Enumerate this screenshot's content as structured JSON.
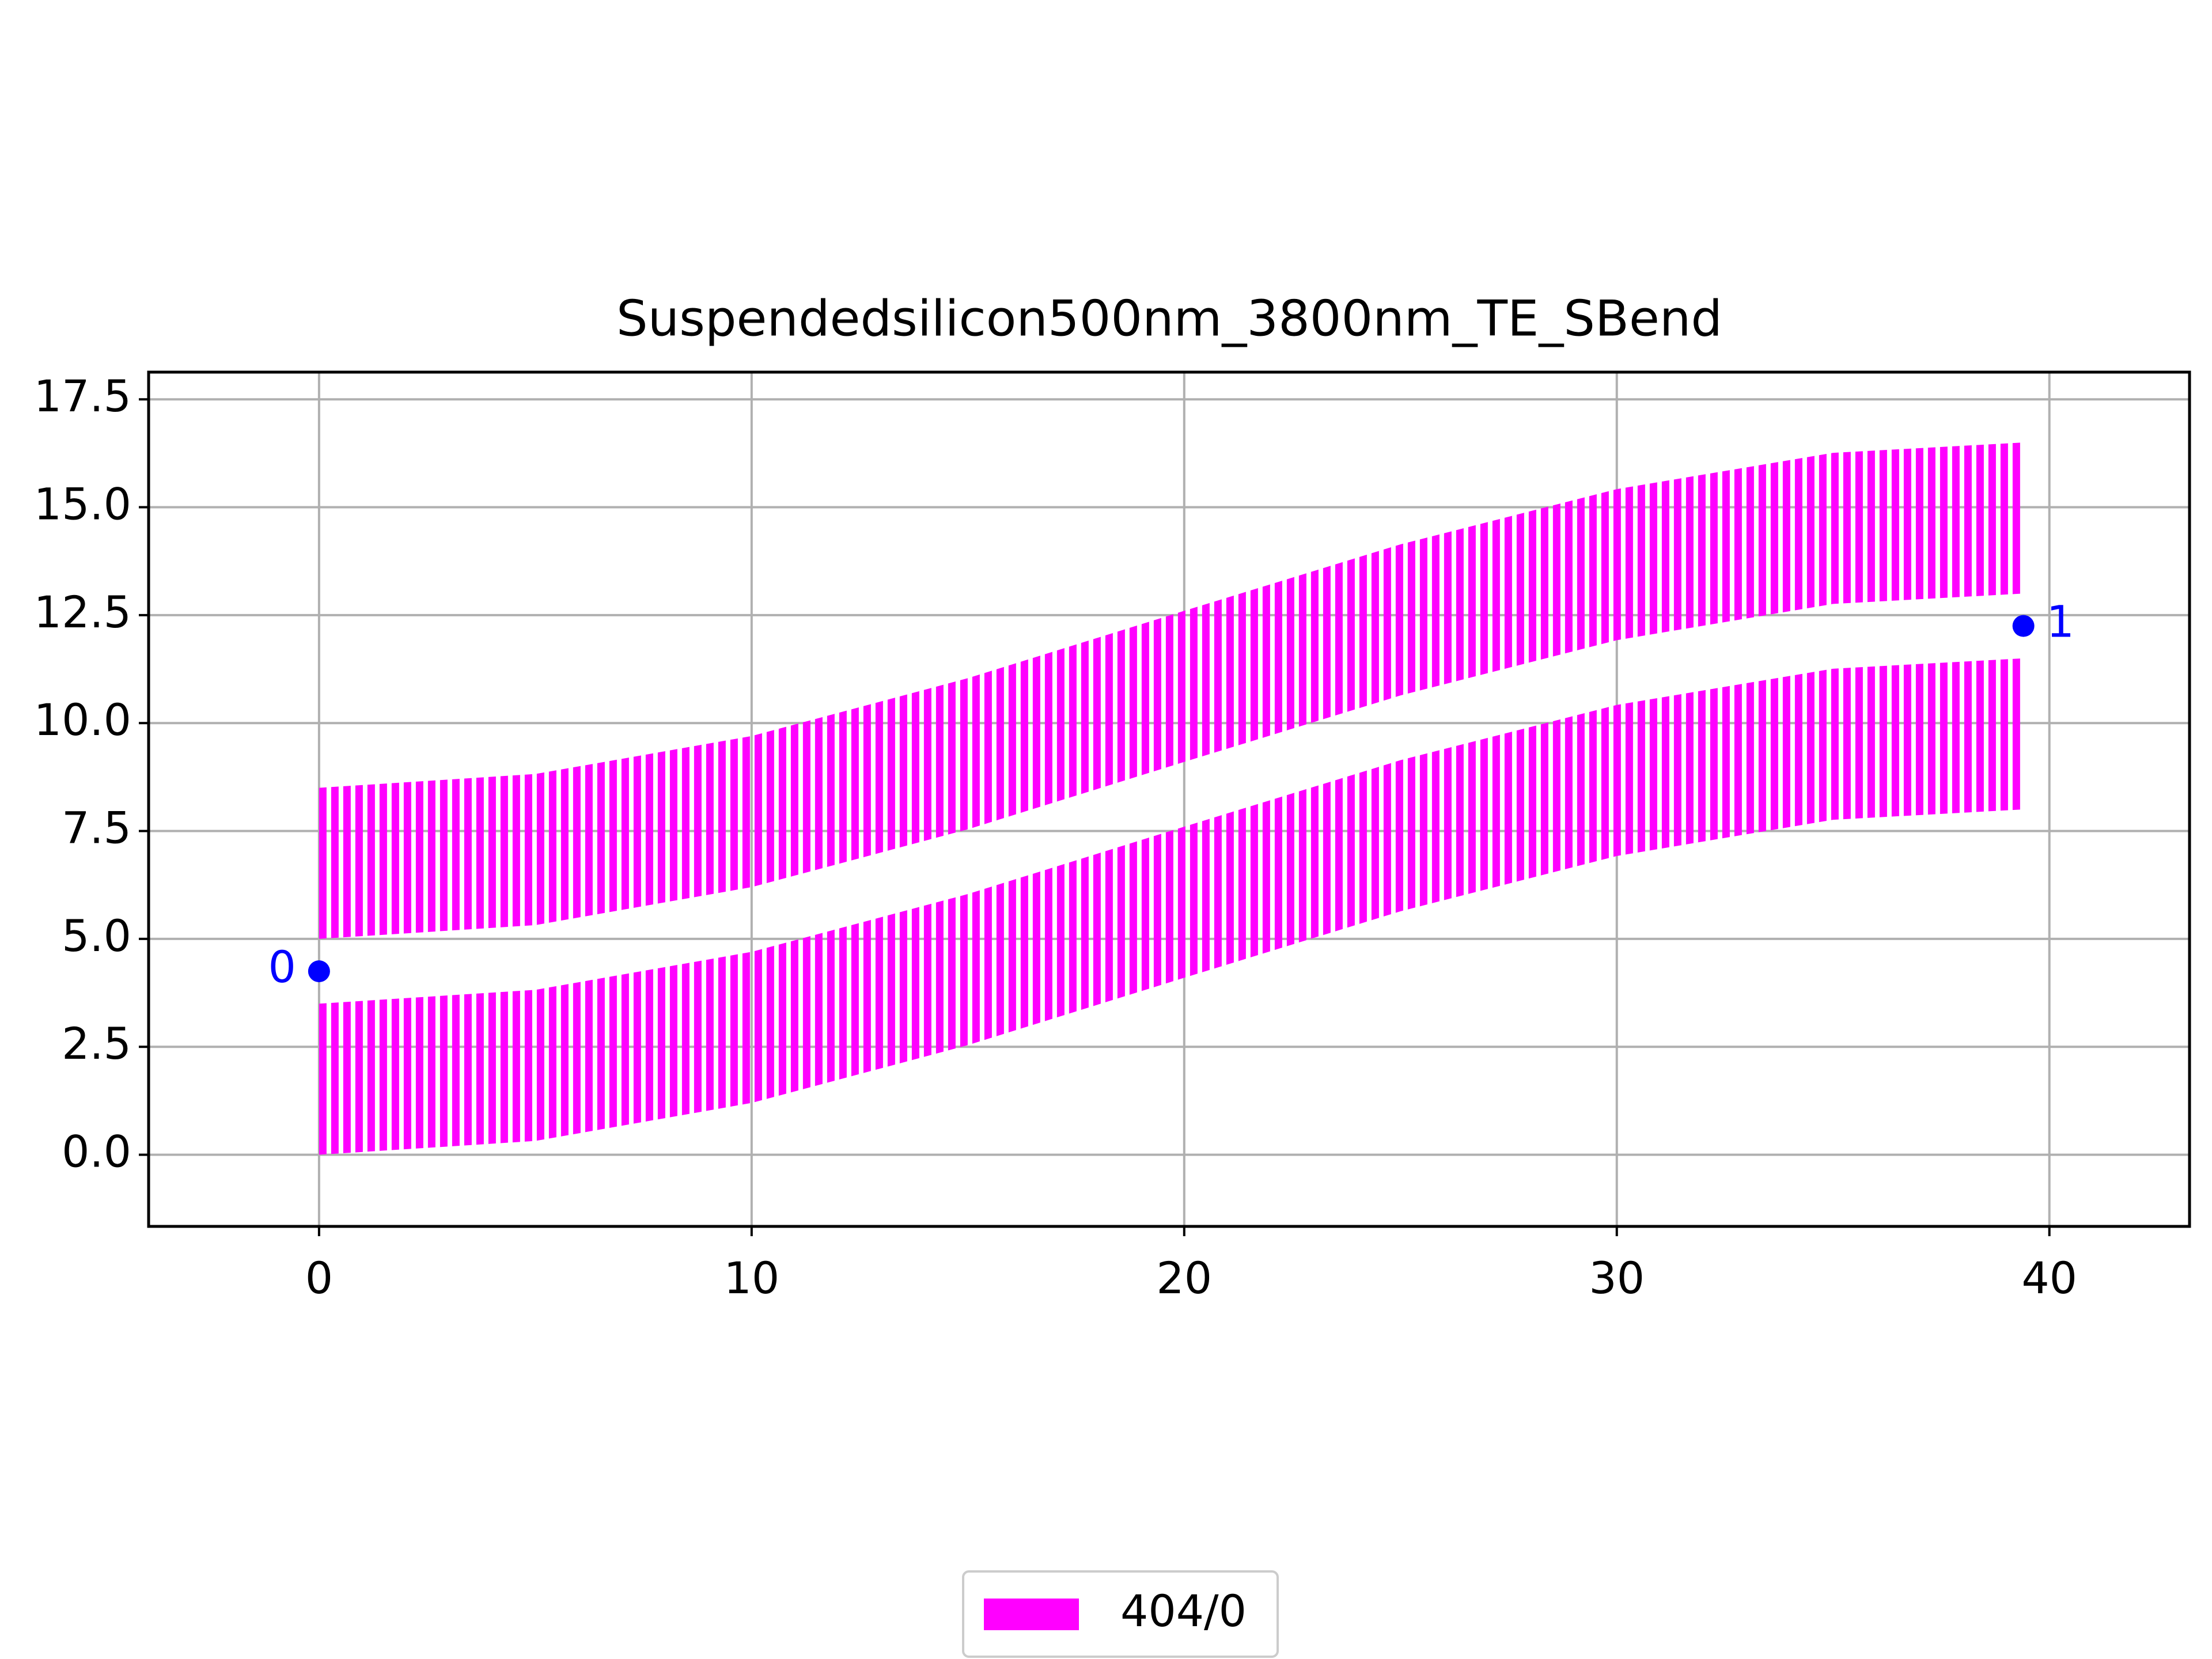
{
  "chart_data": {
    "type": "layout",
    "title": "Suspendedsilicon500nm_3800nm_TE_SBend",
    "color": "#ff00ff",
    "legend": {
      "label": "404/0",
      "position": "bottom"
    },
    "x": [
      0,
      5,
      10,
      15,
      20,
      25,
      30,
      35,
      39.4
    ],
    "bands": [
      {
        "y_bottom": [
          0,
          0.32,
          1.2,
          2.54,
          4.1,
          5.64,
          6.92,
          7.76,
          8
        ],
        "y_top": [
          3.5,
          3.82,
          4.7,
          6.04,
          7.6,
          9.14,
          10.42,
          11.26,
          11.5
        ]
      },
      {
        "y_bottom": [
          5,
          5.32,
          6.2,
          7.54,
          9.1,
          10.64,
          11.92,
          12.76,
          13
        ],
        "y_top": [
          8.5,
          8.82,
          9.7,
          11.04,
          12.6,
          14.14,
          15.42,
          16.26,
          16.5
        ]
      }
    ],
    "ports": [
      {
        "label": "0",
        "x": 0,
        "y": 4.25
      },
      {
        "label": "1",
        "x": 39.4,
        "y": 12.25
      }
    ],
    "port_color": "#0000ff",
    "xlim": [
      -3.94,
      43.24
    ],
    "ylim": [
      -1.66,
      18.13
    ],
    "xticks": [
      0,
      10,
      20,
      30,
      40
    ],
    "yticks": [
      {
        "value": 0,
        "label": "0.0"
      },
      2.5,
      {
        "value": 5,
        "label": "5.0"
      },
      7.5,
      {
        "value": 10,
        "label": "10.0"
      },
      12.5,
      {
        "value": 15,
        "label": "15.0"
      },
      17.5
    ],
    "grid": true
  }
}
